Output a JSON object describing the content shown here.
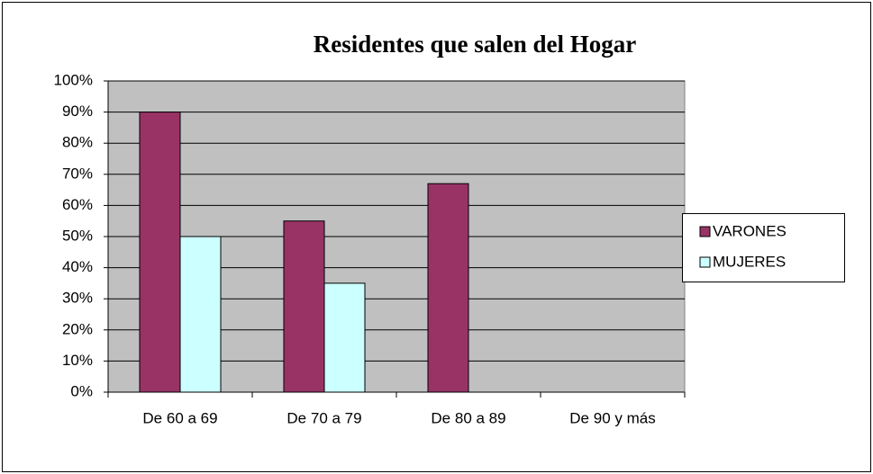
{
  "chart_data": {
    "type": "bar",
    "title": "Residentes que salen del Hogar",
    "categories": [
      "De 60  a 69",
      "De 70  a 79",
      "De 80  a 89",
      "De 90  y más"
    ],
    "series": [
      {
        "name": "VARONES",
        "color": "#993366",
        "values": [
          90,
          55,
          67,
          null
        ]
      },
      {
        "name": "MUJERES",
        "color": "#ccffff",
        "values": [
          50,
          35,
          null,
          null
        ]
      }
    ],
    "ylim": [
      0,
      100
    ],
    "yticks": [
      {
        "value": 0,
        "label": "0%"
      },
      {
        "value": 10,
        "label": "10%"
      },
      {
        "value": 20,
        "label": "20%"
      },
      {
        "value": 30,
        "label": "30%"
      },
      {
        "value": 40,
        "label": "40%"
      },
      {
        "value": 50,
        "label": "50%"
      },
      {
        "value": 60,
        "label": "60%"
      },
      {
        "value": 70,
        "label": "70%"
      },
      {
        "value": 80,
        "label": "80%"
      },
      {
        "value": 90,
        "label": "90%"
      },
      {
        "value": 100,
        "label": "100%"
      }
    ],
    "grid": true,
    "plot_background": "#c0c0c0",
    "legend": "right"
  }
}
